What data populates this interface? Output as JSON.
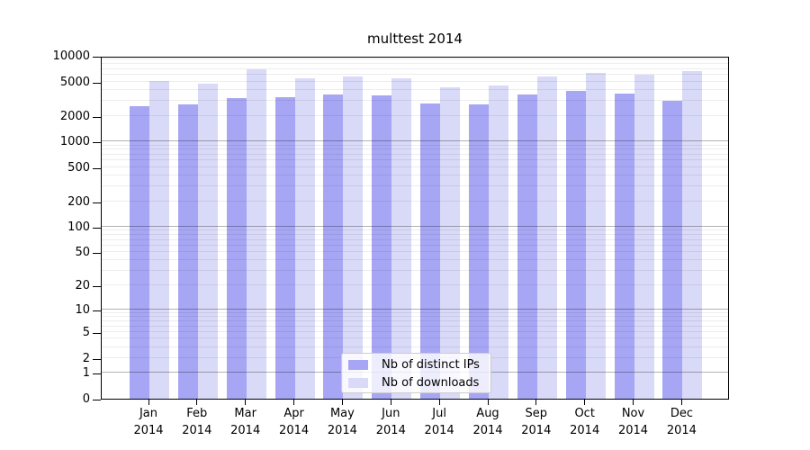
{
  "title": "multtest 2014",
  "chart_data": {
    "type": "bar",
    "title": "multtest 2014",
    "categories": [
      "Jan",
      "Feb",
      "Mar",
      "Apr",
      "May",
      "Jun",
      "Jul",
      "Aug",
      "Sep",
      "Oct",
      "Nov",
      "Dec"
    ],
    "category_year": "2014",
    "series": [
      {
        "name": "Nb of distinct IPs",
        "color": "#a6a6f4",
        "values": [
          2600,
          2700,
          3200,
          3300,
          3500,
          3450,
          2800,
          2700,
          3500,
          3900,
          3650,
          3000
        ]
      },
      {
        "name": "Nb of downloads",
        "color": "#d9d9f8",
        "values": [
          5100,
          4700,
          7000,
          5500,
          5700,
          5500,
          4300,
          4500,
          5700,
          6400,
          6000,
          6700
        ]
      }
    ],
    "y_axis": {
      "scale": "log1p",
      "ticks": [
        10000,
        5000,
        2000,
        1000,
        500,
        200,
        100,
        50,
        20,
        10,
        5,
        2,
        1,
        0
      ],
      "range": [
        0,
        10000
      ]
    },
    "grid": {
      "on": true,
      "decade_lines": [
        1,
        10,
        100,
        1000
      ],
      "minor_mantissas": [
        2,
        3,
        4,
        5,
        6,
        7,
        8,
        9
      ]
    },
    "legend": {
      "position": "lower center"
    }
  },
  "colors": {
    "background": "#ffffff",
    "axis": "#000000",
    "text": "#000000",
    "grid_minor": "rgba(0,0,0,0.07)",
    "grid_major": "rgba(0,0,0,0.30)",
    "legend_border": "#cccccc",
    "legend_background": "rgba(255,255,255,0.8)"
  }
}
